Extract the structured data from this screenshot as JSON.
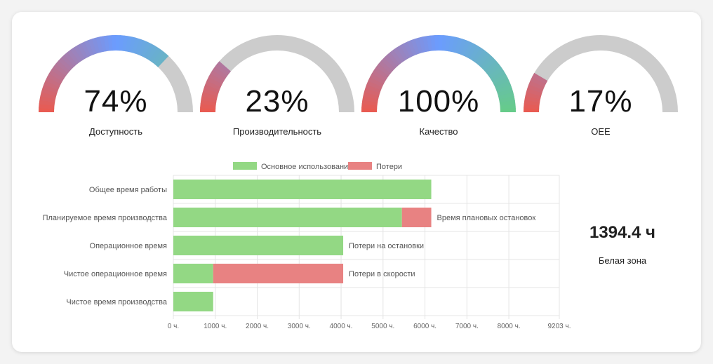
{
  "gauges": [
    {
      "value": 74,
      "text": "74%",
      "label": "Доступность"
    },
    {
      "value": 23,
      "text": "23%",
      "label": "Производительность"
    },
    {
      "value": 100,
      "text": "100%",
      "label": "Качество"
    },
    {
      "value": 17,
      "text": "17%",
      "label": "OEE"
    }
  ],
  "colors": {
    "gauge_start": "#ea5a4f",
    "gauge_mid": "#6b9cff",
    "gauge_end": "#66cc88",
    "gauge_track": "#cccccc",
    "main_usage": "#93d884",
    "losses": "#e88282"
  },
  "chart_data": {
    "type": "bar",
    "orientation": "horizontal",
    "stacked": true,
    "categories": [
      "Общее время работы",
      "Планируемое время производства",
      "Операционное время",
      "Чистое операционное время",
      "Чистое время производства"
    ],
    "series": [
      {
        "name": "Основное использование",
        "values": [
          6150,
          5450,
          4050,
          950,
          950
        ]
      },
      {
        "name": "Потери",
        "values": [
          0,
          700,
          0,
          3100,
          0
        ]
      }
    ],
    "annotations": [
      "",
      "Время плановых остановок",
      "Потери на остановки",
      "Потери в скорости",
      ""
    ],
    "xticks": [
      "0 ч.",
      "1000 ч.",
      "2000 ч.",
      "3000 ч.",
      "4000 ч.",
      "5000 ч.",
      "6000 ч.",
      "7000 ч.",
      "8000 ч.",
      "9203 ч."
    ],
    "xtick_values": [
      0,
      1000,
      2000,
      3000,
      4000,
      5000,
      6000,
      7000,
      8000,
      9203
    ],
    "xlim": [
      0,
      9203
    ],
    "legend_position": "top",
    "grid": true
  },
  "summary": {
    "value": "1394.4 ч",
    "label": "Белая зона"
  }
}
